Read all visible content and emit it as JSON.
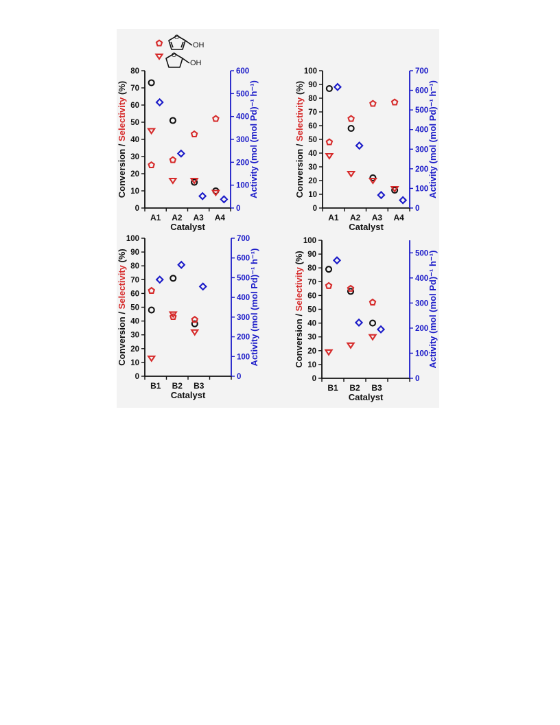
{
  "colors": {
    "conversion": "#111111",
    "selectivity": "#d62a2a",
    "activity": "#1a1ac8",
    "axis": "#111111"
  },
  "legend": {
    "items": [
      {
        "marker": "pentagon",
        "structure": "furan-methanol-structure-icon",
        "label": "OH"
      },
      {
        "marker": "triangle-down",
        "structure": "tetrahydrofuran-methanol-structure-icon",
        "label": "OH"
      }
    ]
  },
  "ylabel_parts": {
    "conversion": "Conversion / ",
    "selectivity": "Selectivity",
    "suffix": " (%)"
  },
  "chart_data": [
    {
      "type": "scatter",
      "xlabel": "Catalyst",
      "categories": [
        "A1",
        "A2",
        "A3",
        "A4"
      ],
      "ylim": [
        0,
        80
      ],
      "yticks": [
        0,
        10,
        20,
        30,
        40,
        50,
        60,
        70,
        80
      ],
      "y2label": "Activity (mol (mol Pd)⁻¹ h⁻¹)",
      "y2lim": [
        0,
        600
      ],
      "y2ticks": [
        0,
        100,
        200,
        300,
        400,
        500,
        600
      ],
      "series": [
        {
          "kind": "conversion",
          "marker": "circle",
          "values": [
            73,
            51,
            15,
            10
          ]
        },
        {
          "kind": "selectivity",
          "marker": "pentagon",
          "values": [
            25,
            28,
            43,
            52
          ]
        },
        {
          "kind": "selectivity",
          "marker": "triangle-down",
          "values": [
            45,
            16,
            16,
            9
          ]
        },
        {
          "kind": "activity",
          "marker": "diamond",
          "axis": "right",
          "values": [
            462,
            238,
            52,
            38
          ]
        }
      ]
    },
    {
      "type": "scatter",
      "xlabel": "Catalyst",
      "categories": [
        "A1",
        "A2",
        "A3",
        "A4"
      ],
      "ylim": [
        0,
        100
      ],
      "yticks": [
        0,
        10,
        20,
        30,
        40,
        50,
        60,
        70,
        80,
        90,
        100
      ],
      "y2label": "Activity (mol (mol Pd)⁻¹ h⁻¹)",
      "y2lim": [
        0,
        700
      ],
      "y2ticks": [
        0,
        100,
        200,
        300,
        400,
        500,
        600,
        700
      ],
      "series": [
        {
          "kind": "conversion",
          "marker": "circle",
          "values": [
            87,
            58,
            22,
            13
          ]
        },
        {
          "kind": "selectivity",
          "marker": "pentagon",
          "values": [
            48,
            65,
            76,
            77
          ]
        },
        {
          "kind": "selectivity",
          "marker": "triangle-down",
          "values": [
            38,
            25,
            20,
            14
          ]
        },
        {
          "kind": "activity",
          "marker": "diamond",
          "axis": "right",
          "values": [
            617,
            318,
            66,
            40
          ]
        }
      ]
    },
    {
      "type": "scatter",
      "xlabel": "Catalyst",
      "categories": [
        "B1",
        "B2",
        "B3",
        ""
      ],
      "ylim": [
        0,
        100
      ],
      "yticks": [
        0,
        10,
        20,
        30,
        40,
        50,
        60,
        70,
        80,
        90,
        100
      ],
      "y2label": "Activity (mol (mol Pd)⁻¹ h⁻¹)",
      "y2lim": [
        0,
        700
      ],
      "y2ticks": [
        0,
        100,
        200,
        300,
        400,
        500,
        600,
        700
      ],
      "series": [
        {
          "kind": "conversion",
          "marker": "circle",
          "values": [
            48,
            71,
            38,
            null
          ]
        },
        {
          "kind": "selectivity",
          "marker": "pentagon",
          "values": [
            62,
            43,
            41,
            null
          ]
        },
        {
          "kind": "selectivity",
          "marker": "triangle-down",
          "values": [
            13,
            45,
            32,
            null
          ]
        },
        {
          "kind": "activity",
          "marker": "diamond",
          "axis": "right",
          "values": [
            490,
            565,
            455,
            null
          ]
        }
      ]
    },
    {
      "type": "scatter",
      "xlabel": "Catalyst",
      "categories": [
        "B1",
        "B2",
        "B3",
        ""
      ],
      "ylim": [
        0,
        100
      ],
      "yticks": [
        0,
        10,
        20,
        30,
        40,
        50,
        60,
        70,
        80,
        90,
        100
      ],
      "y2label": "Activity (mol (mol Pd)⁻¹ h⁻¹)",
      "y2lim": [
        0,
        550
      ],
      "y2ticks": [
        0,
        100,
        200,
        300,
        400,
        500
      ],
      "series": [
        {
          "kind": "conversion",
          "marker": "circle",
          "values": [
            79,
            63,
            40,
            null
          ]
        },
        {
          "kind": "selectivity",
          "marker": "pentagon",
          "values": [
            67,
            65,
            55,
            null
          ]
        },
        {
          "kind": "selectivity",
          "marker": "triangle-down",
          "values": [
            19,
            24,
            30,
            null
          ]
        },
        {
          "kind": "activity",
          "marker": "diamond",
          "axis": "right",
          "values": [
            470,
            222,
            195,
            null
          ]
        }
      ]
    }
  ]
}
